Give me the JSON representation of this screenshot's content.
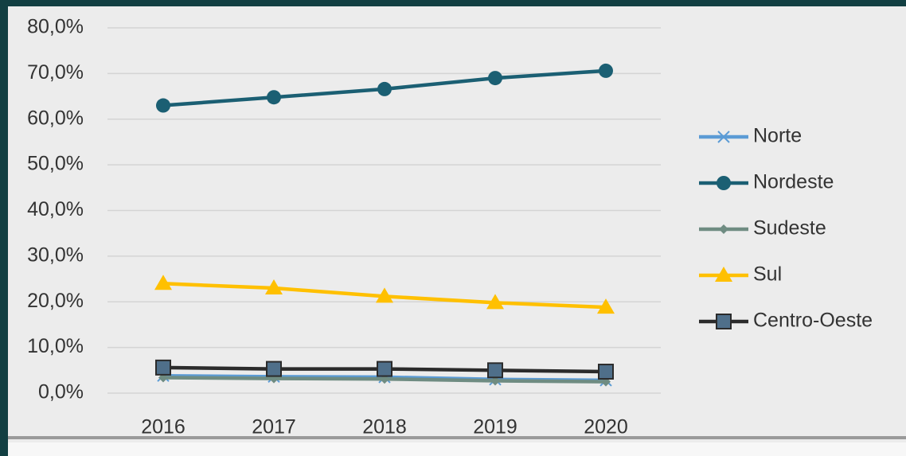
{
  "chart_data": {
    "type": "line",
    "x": [
      "2016",
      "2017",
      "2018",
      "2019",
      "2020"
    ],
    "ylim": [
      0,
      80
    ],
    "yticks": [
      {
        "value": 0,
        "label": "0,0%"
      },
      {
        "value": 10,
        "label": "10,0%"
      },
      {
        "value": 20,
        "label": "20,0%"
      },
      {
        "value": 30,
        "label": "30,0%"
      },
      {
        "value": 40,
        "label": "40,0%"
      },
      {
        "value": 50,
        "label": "50,0%"
      },
      {
        "value": 60,
        "label": "60,0%"
      },
      {
        "value": 70,
        "label": "70,0%"
      },
      {
        "value": 80,
        "label": "80,0%"
      }
    ],
    "grid": true,
    "legend": "right",
    "series": [
      {
        "name": "Norte",
        "color": "#5b9bd5",
        "marker": "x",
        "values": [
          3.8,
          3.6,
          3.5,
          3.0,
          2.8
        ]
      },
      {
        "name": "Nordeste",
        "color": "#1b5f73",
        "marker": "circle",
        "values": [
          63.0,
          64.8,
          66.6,
          69.0,
          70.6
        ]
      },
      {
        "name": "Sudeste",
        "color": "#6f8c82",
        "marker": "diamond",
        "values": [
          3.4,
          3.2,
          3.1,
          2.7,
          2.5
        ]
      },
      {
        "name": "Sul",
        "color": "#ffc000",
        "marker": "triangle",
        "values": [
          24.0,
          23.0,
          21.2,
          19.8,
          18.8
        ]
      },
      {
        "name": "Centro-Oeste",
        "color": "#2b2b2b",
        "marker": "square",
        "values": [
          5.6,
          5.3,
          5.3,
          5.0,
          4.7
        ]
      }
    ]
  }
}
